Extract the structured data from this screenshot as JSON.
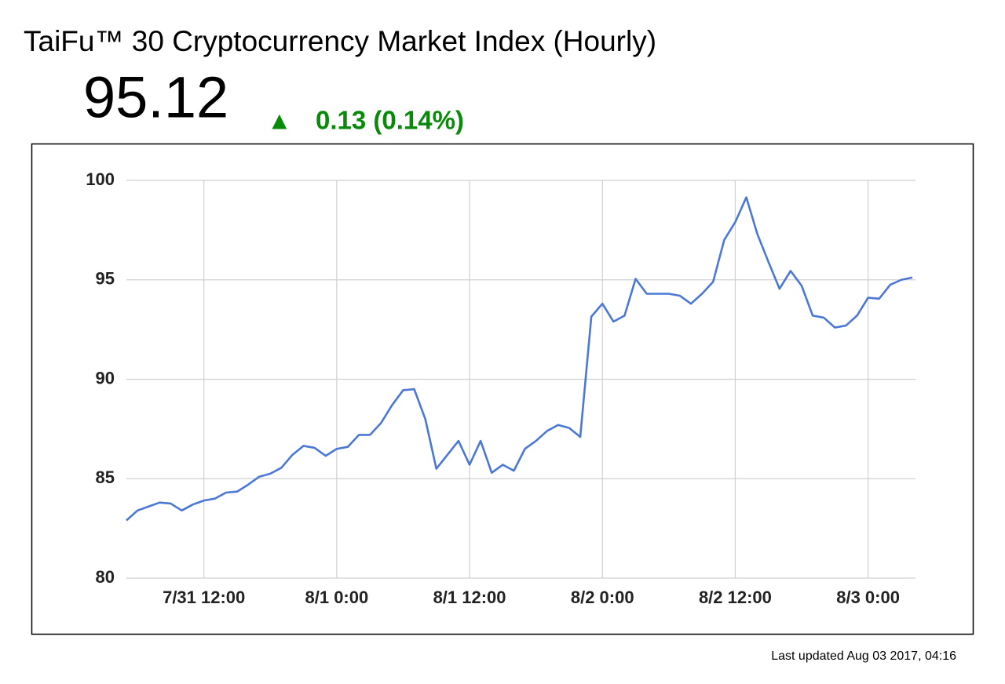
{
  "header": {
    "price": "95.12",
    "arrow": "▲",
    "change": "0.13 (0.14%)",
    "updated": "Last updated Aug 03 2017, 04:16"
  },
  "chart_data": {
    "type": "line",
    "title": "TaiFu™ 30 Cryptocurrency Market Index (Hourly)",
    "x": [
      "7/31 5:00",
      "7/31 6:00",
      "7/31 7:00",
      "7/31 8:00",
      "7/31 9:00",
      "7/31 10:00",
      "7/31 11:00",
      "7/31 12:00",
      "7/31 13:00",
      "7/31 14:00",
      "7/31 15:00",
      "7/31 16:00",
      "7/31 17:00",
      "7/31 18:00",
      "7/31 19:00",
      "7/31 20:00",
      "7/31 21:00",
      "7/31 22:00",
      "7/31 23:00",
      "8/1 0:00",
      "8/1 1:00",
      "8/1 2:00",
      "8/1 3:00",
      "8/1 4:00",
      "8/1 5:00",
      "8/1 6:00",
      "8/1 7:00",
      "8/1 8:00",
      "8/1 9:00",
      "8/1 10:00",
      "8/1 11:00",
      "8/1 12:00",
      "8/1 13:00",
      "8/1 14:00",
      "8/1 15:00",
      "8/1 16:00",
      "8/1 17:00",
      "8/1 18:00",
      "8/1 19:00",
      "8/1 20:00",
      "8/1 21:00",
      "8/1 22:00",
      "8/1 23:00",
      "8/2 0:00",
      "8/2 1:00",
      "8/2 2:00",
      "8/2 3:00",
      "8/2 4:00",
      "8/2 5:00",
      "8/2 6:00",
      "8/2 7:00",
      "8/2 8:00",
      "8/2 9:00",
      "8/2 10:00",
      "8/2 11:00",
      "8/2 12:00",
      "8/2 13:00",
      "8/2 14:00",
      "8/2 15:00",
      "8/2 16:00",
      "8/2 17:00",
      "8/2 18:00",
      "8/2 19:00",
      "8/2 20:00",
      "8/2 21:00",
      "8/2 22:00",
      "8/2 23:00",
      "8/3 0:00",
      "8/3 1:00",
      "8/3 2:00",
      "8/3 3:00",
      "8/3 4:00"
    ],
    "series": [
      {
        "name": "TaiFu 30",
        "color": "#4a78d4",
        "values": [
          82.9,
          83.4,
          83.6,
          83.8,
          83.75,
          83.4,
          83.7,
          83.9,
          84.0,
          84.3,
          84.35,
          84.7,
          85.1,
          85.25,
          85.55,
          86.2,
          86.65,
          86.55,
          86.15,
          86.5,
          86.6,
          87.2,
          87.2,
          87.8,
          88.7,
          89.45,
          89.5,
          88.0,
          85.5,
          86.2,
          86.9,
          85.7,
          86.9,
          85.3,
          85.7,
          85.4,
          86.5,
          86.9,
          87.4,
          87.7,
          87.55,
          87.1,
          93.15,
          93.8,
          92.9,
          93.2,
          95.05,
          94.3,
          94.3,
          94.3,
          94.2,
          93.8,
          94.3,
          94.9,
          97.0,
          97.9,
          99.15,
          97.3,
          95.9,
          94.55,
          95.45,
          94.7,
          93.2,
          93.1,
          92.6,
          92.7,
          93.2,
          94.1,
          94.05,
          94.75,
          95.0,
          95.12
        ]
      }
    ],
    "xlim": [
      "7/31 5:00",
      "8/3 4:00"
    ],
    "xticks": [
      "7/31 12:00",
      "8/1 0:00",
      "8/1 12:00",
      "8/2 0:00",
      "8/2 12:00",
      "8/3 0:00"
    ],
    "ylim": [
      80,
      100
    ],
    "yticks": [
      80,
      85,
      90,
      95,
      100
    ],
    "grid": true
  }
}
